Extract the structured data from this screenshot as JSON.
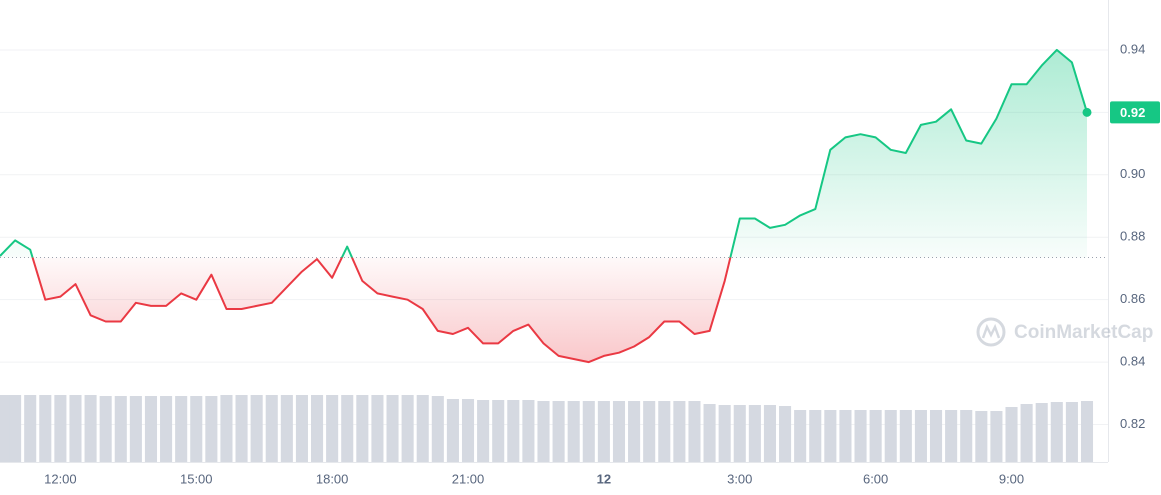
{
  "chart_data": {
    "type": "line",
    "categories": [
      null,
      null,
      null,
      null,
      "12:00",
      null,
      null,
      null,
      null,
      null,
      null,
      null,
      null,
      "15:00",
      null,
      null,
      null,
      null,
      null,
      null,
      null,
      null,
      "18:00",
      null,
      null,
      null,
      null,
      null,
      null,
      null,
      null,
      "21:00",
      null,
      null,
      null,
      null,
      null,
      null,
      null,
      null,
      "12",
      null,
      null,
      null,
      null,
      null,
      null,
      null,
      null,
      "3:00",
      null,
      null,
      null,
      null,
      null,
      null,
      null,
      null,
      "6:00",
      null,
      null,
      null,
      null,
      null,
      null,
      null,
      null,
      "9:00",
      null,
      null,
      null,
      null,
      null
    ],
    "values": [
      0.874,
      0.879,
      0.876,
      0.86,
      0.861,
      0.865,
      0.855,
      0.853,
      0.853,
      0.859,
      0.858,
      0.858,
      0.862,
      0.86,
      0.868,
      0.857,
      0.857,
      0.858,
      0.859,
      0.864,
      0.869,
      0.873,
      0.867,
      0.877,
      0.866,
      0.862,
      0.861,
      0.86,
      0.857,
      0.85,
      0.849,
      0.851,
      0.846,
      0.846,
      0.85,
      0.852,
      0.846,
      0.842,
      0.841,
      0.84,
      0.842,
      0.843,
      0.845,
      0.848,
      0.853,
      0.853,
      0.849,
      0.85,
      0.866,
      0.886,
      0.886,
      0.883,
      0.884,
      0.887,
      0.889,
      0.908,
      0.912,
      0.913,
      0.912,
      0.908,
      0.907,
      0.916,
      0.917,
      0.921,
      0.911,
      0.91,
      0.918,
      0.929,
      0.929,
      0.935,
      0.94,
      0.936,
      0.92
    ],
    "volume": [
      67,
      67,
      67,
      67,
      67,
      67,
      67,
      66,
      66,
      66,
      66,
      66,
      66,
      66,
      66,
      67,
      67,
      67,
      67,
      67,
      67,
      67,
      67,
      67,
      67,
      67,
      67,
      67,
      67,
      66,
      63,
      63,
      62,
      62,
      62,
      62,
      61,
      61,
      61,
      61,
      61,
      61,
      61,
      61,
      61,
      61,
      61,
      58,
      57,
      57,
      57,
      57,
      56,
      52,
      52,
      52,
      52,
      52,
      52,
      52,
      52,
      52,
      52,
      52,
      52,
      51,
      51,
      55,
      58,
      59,
      60,
      60,
      61
    ],
    "baseline": 0.8735,
    "up_color": "#16c784",
    "down_color": "#ea3943",
    "volume_color": "#d5d9e1",
    "ylim": [
      0.808,
      0.956
    ],
    "yticks": [
      0.82,
      0.84,
      0.86,
      0.88,
      {
        "value": 0.9,
        "label": "0.90"
      },
      0.92,
      0.94
    ],
    "grid": true,
    "watermark": "CoinMarketCap"
  }
}
